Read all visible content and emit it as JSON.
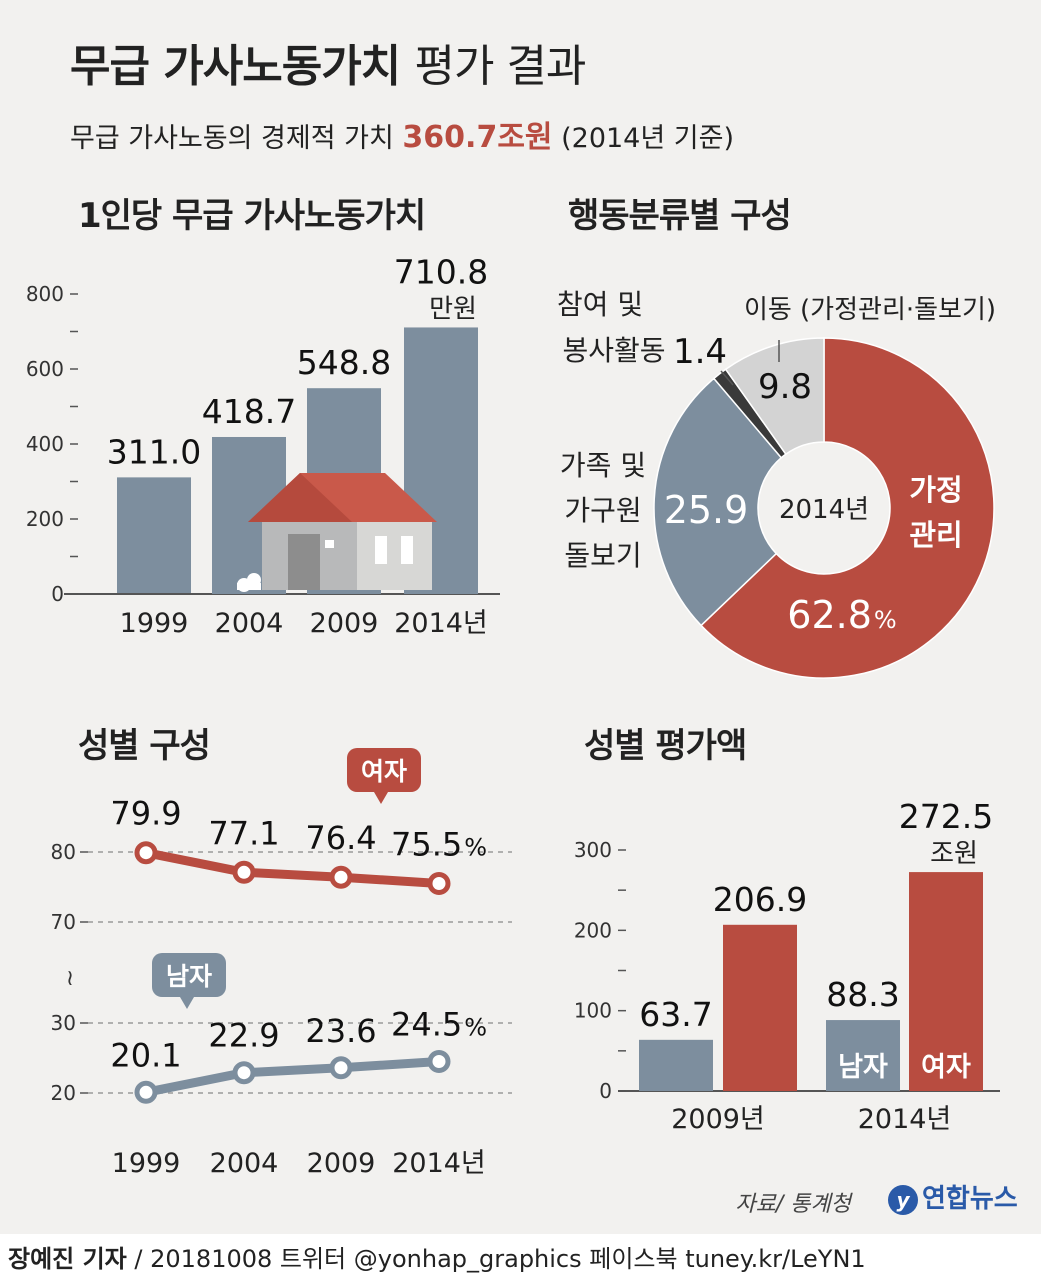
{
  "header": {
    "title_bold": "무급 가사노동가치",
    "title_light": "평가 결과",
    "subtitle_pre": "무급 가사노동의 경제적 가치",
    "subtitle_value": "360.7조원",
    "subtitle_post": "(2014년 기준)"
  },
  "sections": {
    "per_capita": "1인당 무급 가사노동가치",
    "by_activity": "행동분류별 구성",
    "by_gender": "성별 구성",
    "gender_value": "성별 평가액"
  },
  "colors": {
    "red": "#b84c40",
    "gray": "#7d8e9e",
    "light": "#d3d3d3",
    "dark": "#3a3a3a"
  },
  "chart_data": [
    {
      "type": "bar",
      "title": "1인당 무급 가사노동가치",
      "categories": [
        "1999",
        "2004",
        "2009",
        "2014년"
      ],
      "values": [
        311.0,
        418.7,
        548.8,
        710.8
      ],
      "value_labels": [
        "311.0",
        "418.7",
        "548.8",
        "710.8"
      ],
      "unit": "만원",
      "yticks": [
        "0",
        "200",
        "400",
        "600",
        "800"
      ],
      "ylim": [
        0,
        800
      ]
    },
    {
      "type": "pie",
      "title": "행동분류별 구성",
      "center_label": "2014년",
      "slices": [
        {
          "name": "가정 관리",
          "label_lines": [
            "가정",
            "관리"
          ],
          "value": 62.8,
          "value_label": "62.8",
          "unit": "%",
          "color": "#b84c40"
        },
        {
          "name": "가족 및 가구원 돌보기",
          "label_lines": [
            "가족 및",
            "가구원",
            "돌보기"
          ],
          "value": 25.9,
          "value_label": "25.9",
          "color": "#7d8e9e"
        },
        {
          "name": "참여 및 봉사활동",
          "label_lines": [
            "참여 및",
            "봉사활동"
          ],
          "value": 1.4,
          "value_label": "1.4",
          "color": "#3a3a3a"
        },
        {
          "name": "이동 (가정관리·돌보기)",
          "label_lines": [
            "이동 (가정관리·돌보기)"
          ],
          "value": 9.8,
          "value_label": "9.8",
          "color": "#d3d3d3"
        }
      ]
    },
    {
      "type": "line",
      "title": "성별 구성",
      "x": [
        "1999",
        "2004",
        "2009",
        "2014년"
      ],
      "unit": "%",
      "series": [
        {
          "name": "여자",
          "values": [
            79.9,
            77.1,
            76.4,
            75.5
          ],
          "value_labels": [
            "79.9",
            "77.1",
            "76.4",
            "75.5"
          ],
          "color": "#b84c40"
        },
        {
          "name": "남자",
          "values": [
            20.1,
            22.9,
            23.6,
            24.5
          ],
          "value_labels": [
            "20.1",
            "22.9",
            "23.6",
            "24.5"
          ],
          "color": "#7d8e9e"
        }
      ],
      "upper_yticks": [
        "70",
        "80"
      ],
      "lower_yticks": [
        "20",
        "30"
      ],
      "break_mark": "≀",
      "upper_ylim": [
        70,
        80
      ],
      "lower_ylim": [
        20,
        30
      ],
      "grid": true
    },
    {
      "type": "bar",
      "title": "성별 평가액",
      "categories": [
        "2009년",
        "2014년"
      ],
      "series": [
        {
          "name": "남자",
          "values": [
            63.7,
            88.3
          ],
          "value_labels": [
            "63.7",
            "88.3"
          ],
          "color": "#7d8e9e"
        },
        {
          "name": "여자",
          "values": [
            206.9,
            272.5
          ],
          "value_labels": [
            "206.9",
            "272.5"
          ],
          "color": "#b84c40"
        }
      ],
      "unit": "조원",
      "yticks": [
        "0",
        "100",
        "200",
        "300"
      ],
      "ylim": [
        0,
        300
      ]
    }
  ],
  "source": "자료/ 통계청",
  "logo": {
    "mark": "y",
    "name": "연합뉴스"
  },
  "footer": {
    "author": "장예진 기자",
    "details": " / 20181008 트위터 @yonhap_graphics  페이스북 tuney.kr/LeYN1"
  }
}
